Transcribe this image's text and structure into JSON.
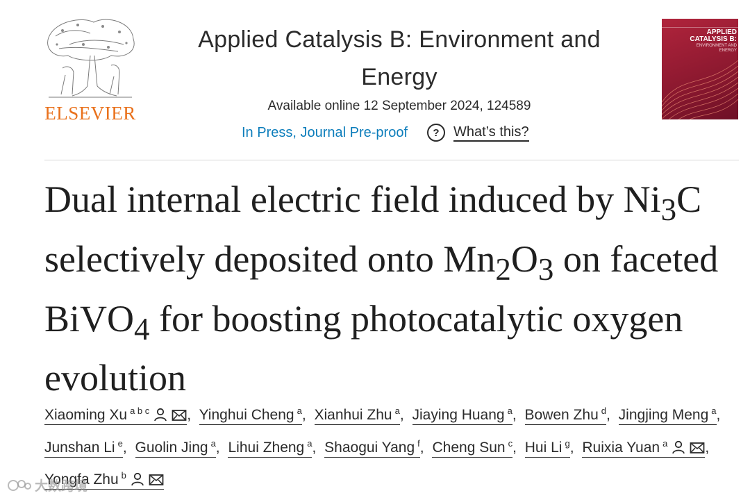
{
  "publisher": {
    "name": "ELSEVIER",
    "logo_color": "#e9711c"
  },
  "journal": {
    "title": "Applied Catalysis B: Environment and Energy",
    "availability": "Available online 12 September 2024, 124589",
    "status_link": "In Press, Journal Pre-proof",
    "help_label": "What’s this?",
    "help_icon": "question-circle-icon",
    "link_color": "#0c7dbb"
  },
  "cover": {
    "title": "APPLIED CATALYSIS B:",
    "subtitle": "ENVIRONMENT AND ENERGY",
    "color": "#9b1d34"
  },
  "article": {
    "title_parts": {
      "p1": "Dual internal electric field induced by Ni",
      "s1": "3",
      "p2": "C selectively deposited onto Mn",
      "s2": "2",
      "p3": "O",
      "s3": "3",
      "p4": " on faceted BiVO",
      "s4": "4",
      "p5": " for boosting photocatalytic oxygen evolution"
    }
  },
  "authors": [
    {
      "name": "Xiaoming Xu",
      "aff": "a b c",
      "icons": [
        "person-icon",
        "envelope-icon"
      ]
    },
    {
      "name": "Yinghui Cheng",
      "aff": "a"
    },
    {
      "name": "Xianhui Zhu",
      "aff": "a"
    },
    {
      "name": "Jiaying Huang",
      "aff": "a"
    },
    {
      "name": "Bowen Zhu",
      "aff": "d"
    },
    {
      "name": "Jingjing Meng",
      "aff": "a"
    },
    {
      "name": "Junshan Li",
      "aff": "e"
    },
    {
      "name": "Guolin Jing",
      "aff": "a"
    },
    {
      "name": "Lihui Zheng",
      "aff": "a"
    },
    {
      "name": "Shaogui Yang",
      "aff": "f"
    },
    {
      "name": "Cheng Sun",
      "aff": "c"
    },
    {
      "name": "Hui Li",
      "aff": "g"
    },
    {
      "name": "Ruixia Yuan",
      "aff": "a",
      "icons": [
        "person-icon",
        "envelope-icon"
      ]
    },
    {
      "name": "Yongfa Zhu",
      "aff": "b",
      "icons": [
        "person-icon",
        "envelope-icon"
      ]
    }
  ],
  "watermark": "大数跨境"
}
